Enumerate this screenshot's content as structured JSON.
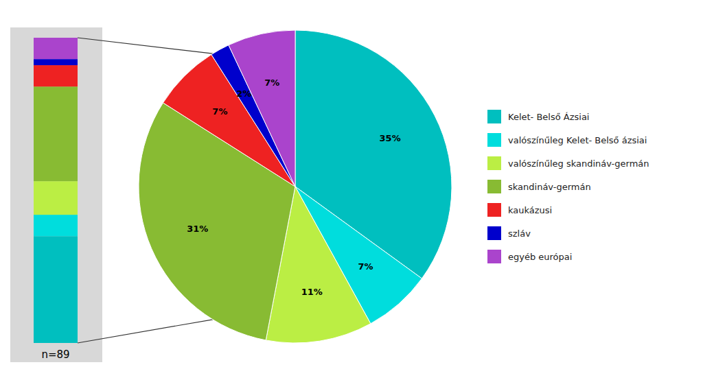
{
  "chart_data": {
    "type": "pie",
    "categories": [
      "Kelet- Belső Ázsiai",
      "valószínűleg Kelet- Belső ázsiai",
      "valószínűleg skandináv-germán",
      "skandináv-germán",
      "kaukázusi",
      "szláv",
      "egyéb európai"
    ],
    "values": [
      35,
      7,
      11,
      31,
      7,
      2,
      7
    ],
    "value_labels": [
      "35%",
      "7%",
      "11%",
      "31%",
      "7%",
      "2%",
      "7%"
    ],
    "colors": [
      "#00BFBF",
      "#00DDDD",
      "#BBEE44",
      "#88BB33",
      "#EE2222",
      "#0000CC",
      "#AA44CC"
    ],
    "annotation": "n=89",
    "data_labels": true,
    "legend": "right"
  }
}
